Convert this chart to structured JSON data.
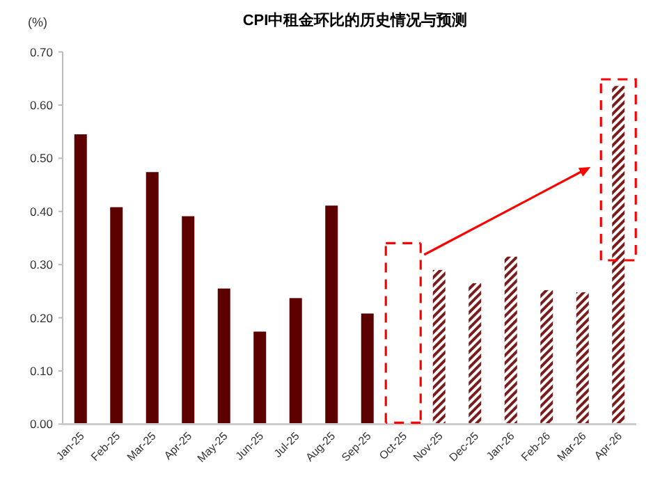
{
  "chart_data": {
    "type": "bar",
    "title": "CPI中租金环比的历史情况与预测",
    "ylabel": "(%)",
    "categories": [
      "Jan-25",
      "Feb-25",
      "Mar-25",
      "Apr-25",
      "May-25",
      "Jun-25",
      "Jul-25",
      "Aug-25",
      "Sep-25",
      "Oct-25",
      "Nov-25",
      "Dec-25",
      "Jan-26",
      "Feb-26",
      "Mar-26",
      "Apr-26"
    ],
    "series": [
      {
        "color": "#5c0000",
        "values": [
          0.545,
          0.408,
          0.474,
          0.391,
          0.255,
          0.174,
          0.237,
          0.411,
          0.208,
          null,
          null,
          null,
          null,
          null,
          null,
          null
        ]
      },
      {
        "color": "#7b1c1c",
        "values": [
          null,
          null,
          null,
          null,
          null,
          null,
          null,
          null,
          null,
          null,
          0.29,
          0.265,
          0.315,
          0.252,
          0.248,
          0.636
        ]
      }
    ],
    "ylim": [
      0,
      0.7
    ],
    "yticks": [
      {
        "value": 0,
        "label": "0.00"
      },
      {
        "value": 0.1,
        "label": "0.10"
      },
      {
        "value": 0.2,
        "label": "0.20"
      },
      {
        "value": 0.3,
        "label": "0.30"
      },
      {
        "value": 0.4,
        "label": "0.40"
      },
      {
        "value": 0.5,
        "label": "0.50"
      },
      {
        "value": 0.6,
        "label": "0.60"
      },
      {
        "value": 0.7,
        "label": "0.70"
      }
    ],
    "grid": false
  }
}
